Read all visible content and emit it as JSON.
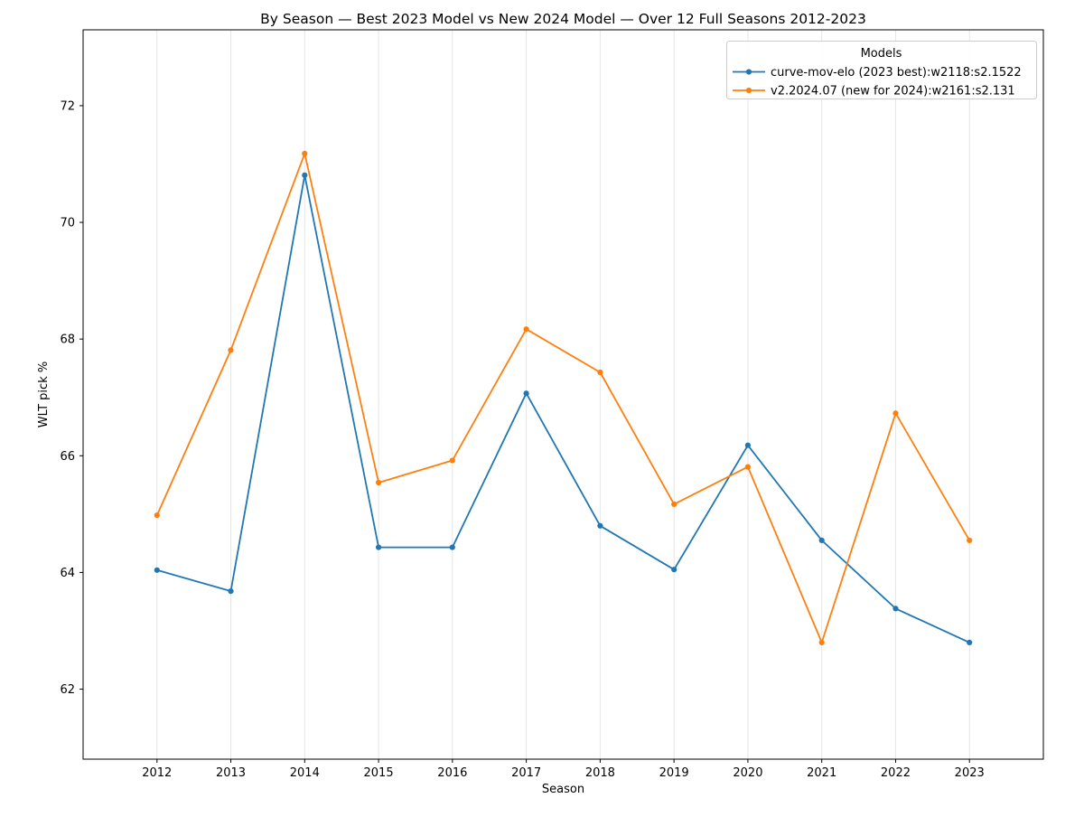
{
  "figure": {
    "background": "#ffffff"
  },
  "chart_data": {
    "type": "line",
    "title": "By Season — Best 2023 Model vs New 2024 Model — Over 12 Full Seasons 2012-2023",
    "xlabel": "Season",
    "ylabel": "WLT pick %",
    "x": [
      2012,
      2013,
      2014,
      2015,
      2016,
      2017,
      2018,
      2019,
      2020,
      2021,
      2022,
      2023
    ],
    "series": [
      {
        "name": "curve-mov-elo (2023 best):w2118:s2.1522",
        "color": "#1f77b4",
        "marker": "circle",
        "values": [
          64.04,
          63.68,
          70.81,
          64.43,
          64.43,
          67.07,
          64.8,
          64.05,
          66.18,
          64.55,
          63.38,
          62.8
        ]
      },
      {
        "name": "v2.2024.07 (new for 2024):w2161:s2.131",
        "color": "#ff7f0e",
        "marker": "circle",
        "values": [
          64.98,
          67.81,
          71.18,
          65.54,
          65.92,
          68.17,
          67.43,
          65.17,
          65.81,
          62.8,
          66.73,
          64.55
        ]
      }
    ],
    "legend": {
      "title": "Models",
      "position": "upper-right"
    },
    "xticks": [
      2012,
      2013,
      2014,
      2015,
      2016,
      2017,
      2018,
      2019,
      2020,
      2021,
      2022,
      2023
    ],
    "yticks": [
      62,
      64,
      66,
      68,
      70,
      72
    ],
    "xlim": [
      2011,
      2024
    ],
    "ylim": [
      60.8,
      73.3
    ],
    "grid": "vertical-only",
    "grid_color": "#e6e6e6",
    "spine_color": "#000000",
    "plot_background": "#ffffff"
  }
}
